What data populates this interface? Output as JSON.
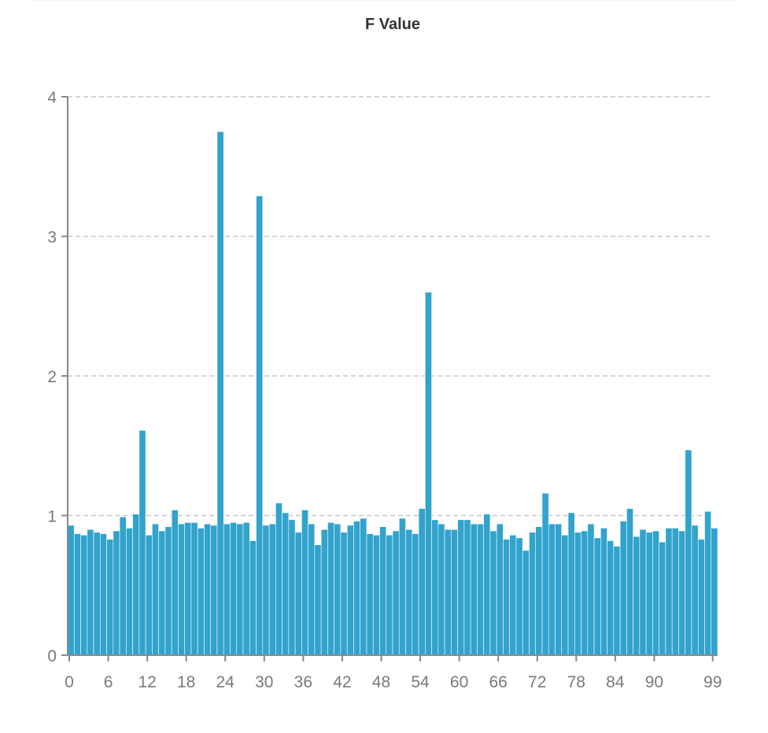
{
  "chart_data": {
    "type": "bar",
    "title": "F Value",
    "xlabel": "",
    "ylabel": "",
    "ylim": [
      0,
      4
    ],
    "xlim": [
      0,
      99
    ],
    "grid": true,
    "legend": "none",
    "bar_color": "#32a3cc",
    "grid_color": "#c8c8c8",
    "axis_color": "#888888",
    "yticks": [
      0,
      1,
      2,
      3,
      4
    ],
    "xticks": [
      0,
      6,
      12,
      18,
      24,
      30,
      36,
      42,
      48,
      54,
      60,
      66,
      72,
      78,
      84,
      90,
      99
    ],
    "values": [
      0.93,
      0.87,
      0.86,
      0.9,
      0.88,
      0.87,
      0.83,
      0.89,
      0.99,
      0.91,
      1.01,
      1.61,
      0.86,
      0.94,
      0.89,
      0.92,
      1.04,
      0.94,
      0.95,
      0.95,
      0.91,
      0.94,
      0.93,
      3.75,
      0.94,
      0.95,
      0.94,
      0.95,
      0.82,
      3.29,
      0.93,
      0.94,
      1.09,
      1.02,
      0.97,
      0.88,
      1.04,
      0.94,
      0.79,
      0.9,
      0.95,
      0.94,
      0.88,
      0.93,
      0.96,
      0.98,
      0.87,
      0.86,
      0.92,
      0.86,
      0.89,
      0.98,
      0.9,
      0.87,
      1.05,
      2.6,
      0.97,
      0.94,
      0.9,
      0.9,
      0.97,
      0.97,
      0.94,
      0.94,
      1.01,
      0.89,
      0.94,
      0.83,
      0.86,
      0.84,
      0.75,
      0.88,
      0.92,
      1.16,
      0.94,
      0.94,
      0.86,
      1.02,
      0.88,
      0.89,
      0.94,
      0.84,
      0.91,
      0.82,
      0.78,
      0.96,
      1.05,
      0.85,
      0.9,
      0.88,
      0.89,
      0.81,
      0.91,
      0.91,
      0.89,
      1.47,
      0.93,
      0.83,
      1.03,
      0.91
    ]
  }
}
